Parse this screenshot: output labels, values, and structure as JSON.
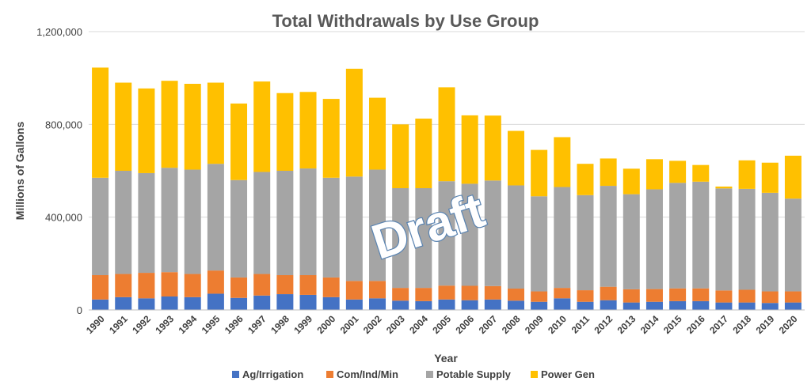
{
  "chart_data": {
    "type": "bar",
    "stacked": true,
    "title": "Total Withdrawals by Use Group",
    "xlabel": "Year",
    "ylabel": "Millions of Gallons",
    "ylim": [
      0,
      1200000
    ],
    "yticks": [
      "0",
      "400,000",
      "800,000",
      "1,200,000"
    ],
    "ytick_values": [
      0,
      400000,
      800000,
      1200000
    ],
    "grid": true,
    "legend_position": "bottom",
    "watermark": "Draft",
    "categories": [
      "1990",
      "1991",
      "1992",
      "1993",
      "1994",
      "1995",
      "1996",
      "1997",
      "1998",
      "1999",
      "2000",
      "2001",
      "2002",
      "2003",
      "2004",
      "2005",
      "2006",
      "2007",
      "2008",
      "2009",
      "2010",
      "2011",
      "2012",
      "2013",
      "2014",
      "2015",
      "2016",
      "2017",
      "2018",
      "2019",
      "2020"
    ],
    "series": [
      {
        "name": "Ag/Irrigation",
        "color": "#4472c4",
        "values": [
          45000,
          55000,
          50000,
          58000,
          55000,
          70000,
          52000,
          62000,
          68000,
          65000,
          55000,
          45000,
          50000,
          40000,
          38000,
          45000,
          42000,
          45000,
          40000,
          35000,
          50000,
          35000,
          42000,
          32000,
          35000,
          38000,
          38000,
          32000,
          32000,
          30000,
          32000
        ]
      },
      {
        "name": "Com/Ind/Min",
        "color": "#ed7d31",
        "values": [
          105000,
          100000,
          110000,
          105000,
          100000,
          100000,
          88000,
          93000,
          82000,
          85000,
          85000,
          80000,
          75000,
          55000,
          57000,
          60000,
          62000,
          58000,
          52000,
          45000,
          45000,
          50000,
          58000,
          57000,
          55000,
          55000,
          55000,
          52000,
          55000,
          50000,
          48000
        ]
      },
      {
        "name": "Potable Supply",
        "color": "#a5a5a5",
        "values": [
          420000,
          445000,
          430000,
          450000,
          450000,
          460000,
          420000,
          440000,
          450000,
          460000,
          430000,
          450000,
          480000,
          430000,
          430000,
          450000,
          440000,
          455000,
          445000,
          410000,
          435000,
          410000,
          435000,
          410000,
          430000,
          455000,
          460000,
          440000,
          435000,
          425000,
          400000
        ]
      },
      {
        "name": "Power Gen",
        "color": "#ffc000",
        "values": [
          475000,
          380000,
          365000,
          375000,
          370000,
          350000,
          330000,
          390000,
          335000,
          330000,
          340000,
          465000,
          310000,
          275000,
          300000,
          405000,
          295000,
          280000,
          235000,
          200000,
          215000,
          135000,
          118000,
          110000,
          130000,
          95000,
          72000,
          8000,
          123000,
          130000,
          185000
        ]
      }
    ]
  }
}
